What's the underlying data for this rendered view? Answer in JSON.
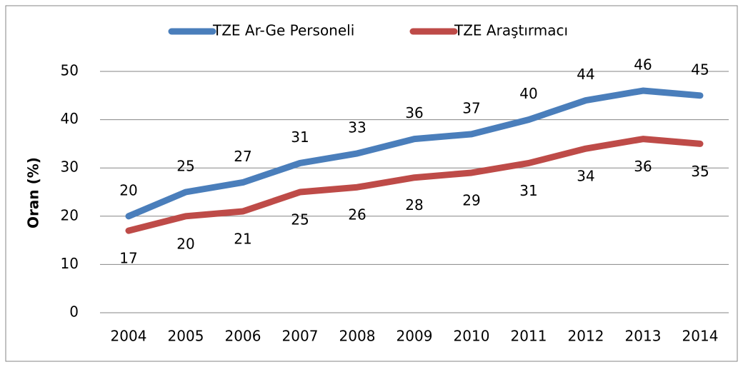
{
  "chart_data": {
    "type": "line",
    "y_label": "Oran (%)",
    "categories": [
      "2004",
      "2005",
      "2006",
      "2007",
      "2008",
      "2009",
      "2010",
      "2011",
      "2012",
      "2013",
      "2014"
    ],
    "series": [
      {
        "name": "TZE Ar-Ge Personeli",
        "color": "#4a7ebb",
        "values": [
          20,
          25,
          27,
          31,
          33,
          36,
          37,
          40,
          44,
          46,
          45
        ]
      },
      {
        "name": "TZE Araştırmacı",
        "color": "#be4b48",
        "values": [
          17,
          20,
          21,
          25,
          26,
          28,
          29,
          31,
          34,
          36,
          35
        ]
      }
    ],
    "ylim": [
      0,
      50
    ],
    "yticks": [
      0,
      10,
      20,
      30,
      40,
      50
    ],
    "grid": true,
    "legend": "top"
  }
}
